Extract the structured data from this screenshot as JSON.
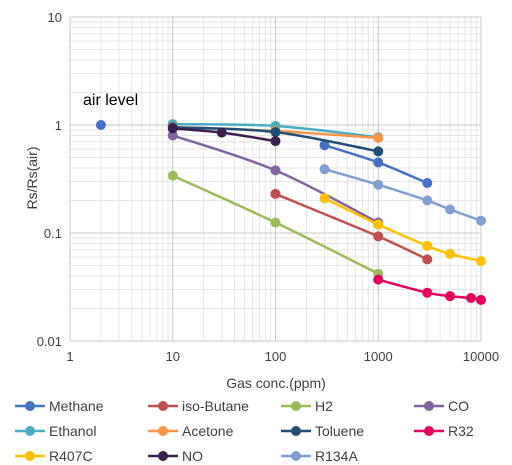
{
  "chart_data": {
    "type": "line",
    "title": "",
    "xlabel": "Gas conc.(ppm)",
    "ylabel": "Rs/Rs(air)",
    "xscale": "log",
    "yscale": "log",
    "xlim": [
      1,
      10000
    ],
    "ylim": [
      0.01,
      10
    ],
    "x_ticks": [
      "1",
      "10",
      "100",
      "1000",
      "10000"
    ],
    "y_ticks": [
      "10",
      "1",
      "0.1",
      "0.01"
    ],
    "grid": "major and minor",
    "legend_position": "bottom",
    "annotation": {
      "text": "air level",
      "point": {
        "x": 2,
        "y": 1
      },
      "color": "#4472C4"
    },
    "series": [
      {
        "name": "Methane",
        "color": "#4472C4",
        "points": [
          [
            300,
            0.65
          ],
          [
            1000,
            0.45
          ],
          [
            3000,
            0.29
          ]
        ]
      },
      {
        "name": "iso-Butane",
        "color": "#C0504D",
        "points": [
          [
            100,
            0.23
          ],
          [
            1000,
            0.093
          ],
          [
            3000,
            0.057
          ]
        ]
      },
      {
        "name": "H2",
        "color": "#9BBB59",
        "points": [
          [
            10,
            0.34
          ],
          [
            100,
            0.125
          ],
          [
            1000,
            0.042
          ]
        ]
      },
      {
        "name": "CO",
        "color": "#8064A2",
        "points": [
          [
            10,
            0.8
          ],
          [
            100,
            0.38
          ],
          [
            1000,
            0.125
          ]
        ]
      },
      {
        "name": "Ethanol",
        "color": "#4BACC6",
        "points": [
          [
            10,
            1.02
          ],
          [
            100,
            0.98
          ],
          [
            1000,
            0.77
          ]
        ]
      },
      {
        "name": "Acetone",
        "color": "#F79646",
        "points": [
          [
            10,
            0.96
          ],
          [
            100,
            0.88
          ],
          [
            1000,
            0.76
          ]
        ]
      },
      {
        "name": "Toluene",
        "color": "#1F4E79",
        "points": [
          [
            10,
            0.95
          ],
          [
            100,
            0.86
          ],
          [
            1000,
            0.57
          ]
        ]
      },
      {
        "name": "R32",
        "color": "#E6005C",
        "points": [
          [
            1000,
            0.037
          ],
          [
            3000,
            0.028
          ],
          [
            5000,
            0.026
          ],
          [
            8000,
            0.025
          ],
          [
            10000,
            0.024
          ]
        ]
      },
      {
        "name": "R407C",
        "color": "#FFC000",
        "points": [
          [
            300,
            0.21
          ],
          [
            1000,
            0.12
          ],
          [
            3000,
            0.076
          ],
          [
            5000,
            0.064
          ],
          [
            10000,
            0.055
          ]
        ]
      },
      {
        "name": "NO",
        "color": "#3B1F4F",
        "points": [
          [
            10,
            0.93
          ],
          [
            30,
            0.85
          ],
          [
            100,
            0.71
          ]
        ]
      },
      {
        "name": "R134A",
        "color": "#7F9FD3",
        "points": [
          [
            300,
            0.39
          ],
          [
            1000,
            0.28
          ],
          [
            3000,
            0.2
          ],
          [
            5000,
            0.165
          ],
          [
            10000,
            0.13
          ]
        ]
      }
    ]
  }
}
